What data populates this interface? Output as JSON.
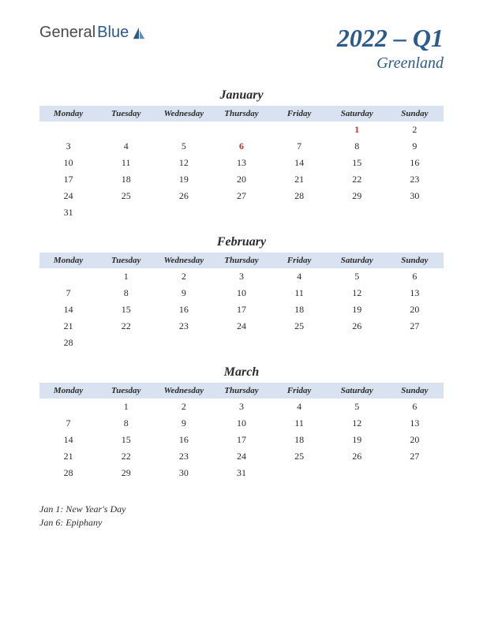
{
  "logo": {
    "part1": "General",
    "part2": "Blue"
  },
  "title": "2022 – Q1",
  "subtitle": "Greenland",
  "weekdays": [
    "Monday",
    "Tuesday",
    "Wednesday",
    "Thursday",
    "Friday",
    "Saturday",
    "Sunday"
  ],
  "colors": {
    "header_bg": "#d9e2f0",
    "accent": "#2b5a8f",
    "holiday": "#c03030",
    "text": "#2b2b2b"
  },
  "months": [
    {
      "name": "January",
      "weeks": [
        [
          "",
          "",
          "",
          "",
          "",
          {
            "d": "1",
            "h": true
          },
          "2"
        ],
        [
          "3",
          "4",
          "5",
          {
            "d": "6",
            "h": true
          },
          "7",
          "8",
          "9"
        ],
        [
          "10",
          "11",
          "12",
          "13",
          "14",
          "15",
          "16"
        ],
        [
          "17",
          "18",
          "19",
          "20",
          "21",
          "22",
          "23"
        ],
        [
          "24",
          "25",
          "26",
          "27",
          "28",
          "29",
          "30"
        ],
        [
          "31",
          "",
          "",
          "",
          "",
          "",
          ""
        ]
      ]
    },
    {
      "name": "February",
      "weeks": [
        [
          "",
          "1",
          "2",
          "3",
          "4",
          "5",
          "6"
        ],
        [
          "7",
          "8",
          "9",
          "10",
          "11",
          "12",
          "13"
        ],
        [
          "14",
          "15",
          "16",
          "17",
          "18",
          "19",
          "20"
        ],
        [
          "21",
          "22",
          "23",
          "24",
          "25",
          "26",
          "27"
        ],
        [
          "28",
          "",
          "",
          "",
          "",
          "",
          ""
        ]
      ]
    },
    {
      "name": "March",
      "weeks": [
        [
          "",
          "1",
          "2",
          "3",
          "4",
          "5",
          "6"
        ],
        [
          "7",
          "8",
          "9",
          "10",
          "11",
          "12",
          "13"
        ],
        [
          "14",
          "15",
          "16",
          "17",
          "18",
          "19",
          "20"
        ],
        [
          "21",
          "22",
          "23",
          "24",
          "25",
          "26",
          "27"
        ],
        [
          "28",
          "29",
          "30",
          "31",
          "",
          "",
          ""
        ]
      ]
    }
  ],
  "holidays": [
    "Jan 1: New Year's Day",
    "Jan 6: Epiphany"
  ]
}
